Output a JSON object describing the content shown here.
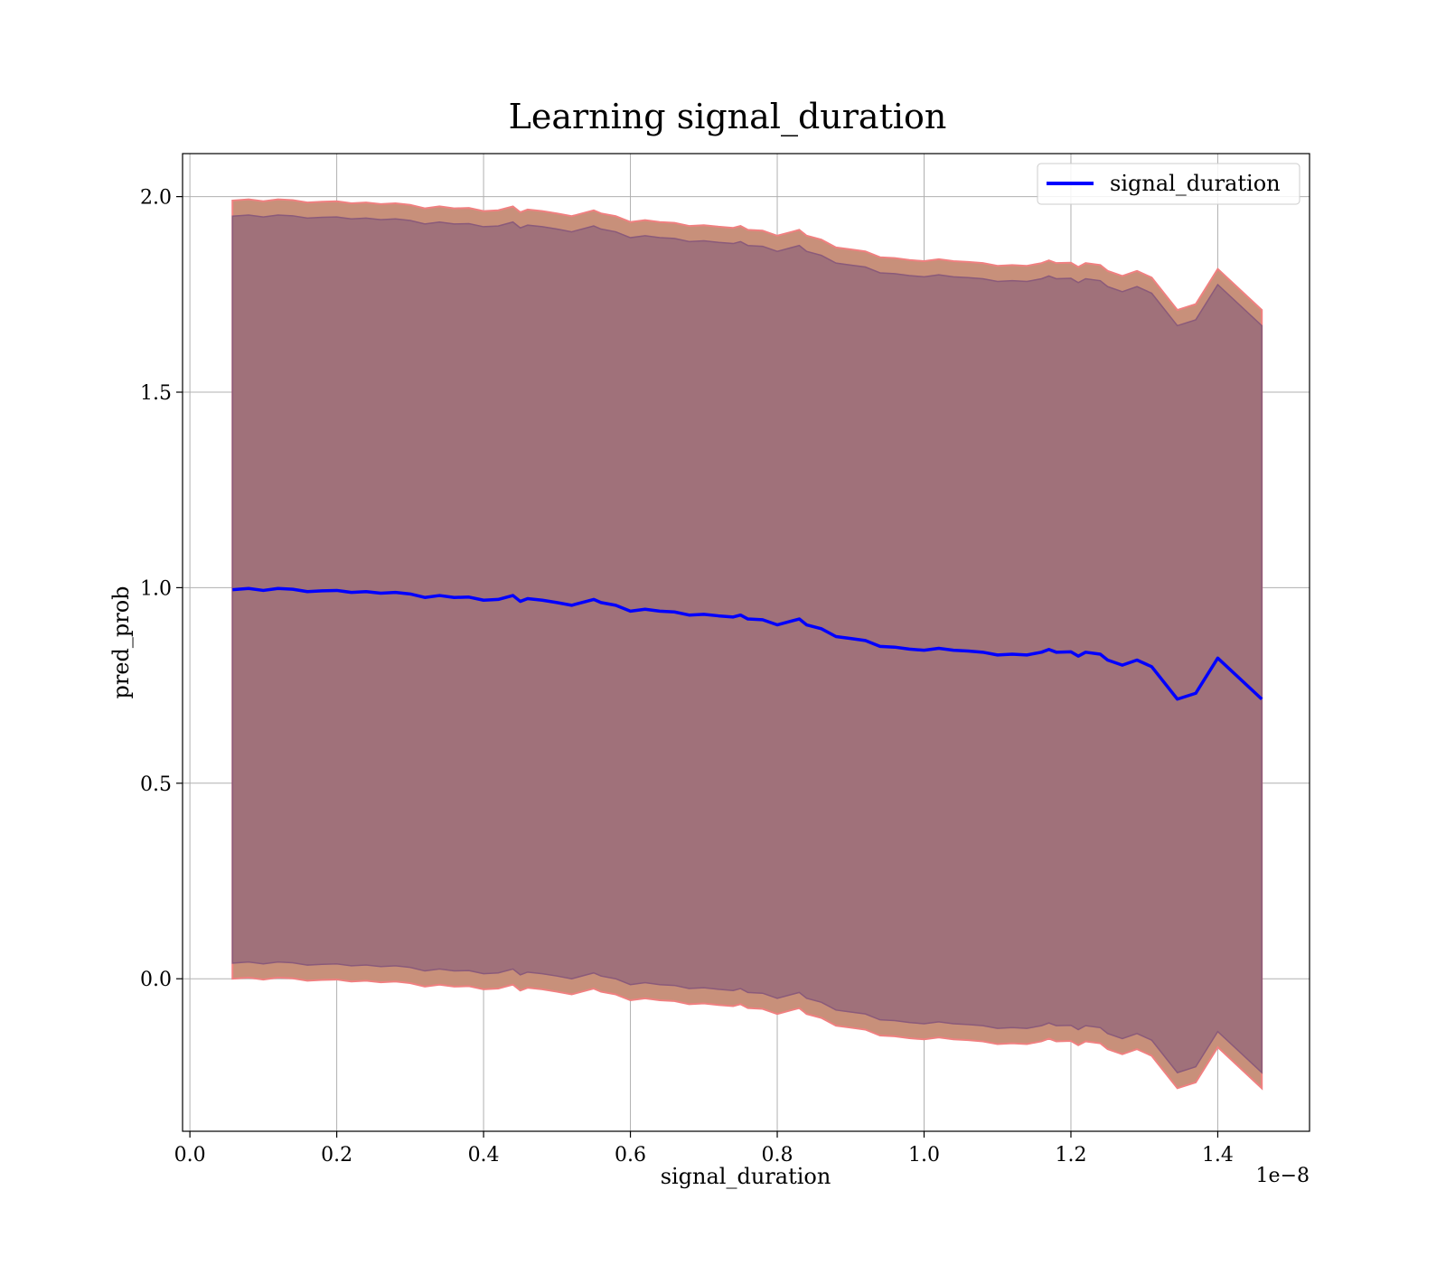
{
  "chart_data": {
    "type": "line",
    "title": "Learning signal_duration",
    "xlabel": "signal_duration",
    "ylabel": "pred_prob",
    "x_offset_label": "1e−8",
    "xlim": [
      -0.01,
      1.525
    ],
    "ylim": [
      -0.39,
      2.11
    ],
    "xticks": [
      0.0,
      0.2,
      0.4,
      0.6,
      0.8,
      1.0,
      1.2,
      1.4
    ],
    "xtick_labels": [
      "0.0",
      "0.2",
      "0.4",
      "0.6",
      "0.8",
      "1.0",
      "1.2",
      "1.4"
    ],
    "yticks": [
      0.0,
      0.5,
      1.0,
      1.5,
      2.0
    ],
    "ytick_labels": [
      "0.0",
      "0.5",
      "1.0",
      "1.5",
      "2.0"
    ],
    "grid": true,
    "legend_position": "top-right",
    "series": [
      {
        "name": "signal_duration",
        "color": "#0000ff",
        "x": [
          0.058,
          0.08,
          0.1,
          0.12,
          0.14,
          0.16,
          0.18,
          0.2,
          0.22,
          0.24,
          0.26,
          0.28,
          0.3,
          0.32,
          0.34,
          0.36,
          0.38,
          0.4,
          0.42,
          0.44,
          0.45,
          0.46,
          0.48,
          0.5,
          0.52,
          0.54,
          0.55,
          0.56,
          0.58,
          0.6,
          0.62,
          0.64,
          0.66,
          0.68,
          0.7,
          0.72,
          0.74,
          0.75,
          0.76,
          0.78,
          0.8,
          0.82,
          0.83,
          0.84,
          0.86,
          0.88,
          0.9,
          0.92,
          0.94,
          0.96,
          0.98,
          1.0,
          1.02,
          1.04,
          1.06,
          1.08,
          1.1,
          1.12,
          1.14,
          1.16,
          1.17,
          1.18,
          1.2,
          1.21,
          1.22,
          1.24,
          1.25,
          1.27,
          1.29,
          1.31,
          1.345,
          1.37,
          1.4,
          1.46
        ],
        "y": [
          0.995,
          0.998,
          0.993,
          0.998,
          0.996,
          0.99,
          0.992,
          0.993,
          0.988,
          0.99,
          0.986,
          0.988,
          0.984,
          0.975,
          0.98,
          0.975,
          0.976,
          0.968,
          0.97,
          0.98,
          0.965,
          0.972,
          0.968,
          0.962,
          0.955,
          0.965,
          0.97,
          0.962,
          0.955,
          0.94,
          0.945,
          0.94,
          0.938,
          0.93,
          0.932,
          0.928,
          0.925,
          0.93,
          0.92,
          0.918,
          0.905,
          0.915,
          0.92,
          0.905,
          0.895,
          0.875,
          0.87,
          0.865,
          0.85,
          0.848,
          0.843,
          0.84,
          0.845,
          0.84,
          0.838,
          0.835,
          0.828,
          0.83,
          0.828,
          0.835,
          0.842,
          0.835,
          0.836,
          0.825,
          0.835,
          0.83,
          0.815,
          0.802,
          0.815,
          0.798,
          0.715,
          0.73,
          0.82,
          0.715
        ],
        "outer_band_lower": [
          0.0,
          0.003,
          -0.002,
          0.003,
          0.001,
          -0.005,
          -0.003,
          -0.002,
          -0.007,
          -0.005,
          -0.009,
          -0.007,
          -0.011,
          -0.02,
          -0.015,
          -0.02,
          -0.019,
          -0.027,
          -0.025,
          -0.015,
          -0.03,
          -0.023,
          -0.027,
          -0.033,
          -0.04,
          -0.03,
          -0.025,
          -0.033,
          -0.04,
          -0.055,
          -0.05,
          -0.055,
          -0.057,
          -0.065,
          -0.063,
          -0.067,
          -0.07,
          -0.065,
          -0.075,
          -0.077,
          -0.09,
          -0.08,
          -0.075,
          -0.09,
          -0.1,
          -0.12,
          -0.125,
          -0.13,
          -0.145,
          -0.147,
          -0.152,
          -0.155,
          -0.15,
          -0.155,
          -0.157,
          -0.16,
          -0.167,
          -0.165,
          -0.167,
          -0.16,
          -0.153,
          -0.16,
          -0.159,
          -0.17,
          -0.16,
          -0.165,
          -0.18,
          -0.193,
          -0.18,
          -0.197,
          -0.28,
          -0.265,
          -0.175,
          -0.28
        ],
        "outer_band_upper": [
          1.99,
          1.993,
          1.988,
          1.993,
          1.991,
          1.985,
          1.987,
          1.988,
          1.983,
          1.985,
          1.981,
          1.983,
          1.979,
          1.97,
          1.975,
          1.97,
          1.971,
          1.963,
          1.965,
          1.975,
          1.96,
          1.967,
          1.963,
          1.957,
          1.95,
          1.96,
          1.965,
          1.957,
          1.95,
          1.935,
          1.94,
          1.935,
          1.933,
          1.925,
          1.927,
          1.923,
          1.92,
          1.925,
          1.915,
          1.913,
          1.9,
          1.91,
          1.915,
          1.9,
          1.89,
          1.87,
          1.865,
          1.86,
          1.845,
          1.843,
          1.838,
          1.835,
          1.84,
          1.835,
          1.833,
          1.83,
          1.823,
          1.825,
          1.823,
          1.83,
          1.837,
          1.83,
          1.831,
          1.82,
          1.83,
          1.825,
          1.81,
          1.797,
          1.81,
          1.793,
          1.71,
          1.725,
          1.815,
          1.71
        ],
        "inner_band_lower": [
          0.04,
          0.043,
          0.038,
          0.043,
          0.041,
          0.035,
          0.037,
          0.038,
          0.033,
          0.035,
          0.031,
          0.033,
          0.029,
          0.02,
          0.025,
          0.02,
          0.021,
          0.013,
          0.015,
          0.025,
          0.01,
          0.017,
          0.013,
          0.007,
          0.0,
          0.01,
          0.015,
          0.007,
          0.0,
          -0.015,
          -0.01,
          -0.015,
          -0.017,
          -0.025,
          -0.023,
          -0.027,
          -0.03,
          -0.025,
          -0.035,
          -0.037,
          -0.05,
          -0.04,
          -0.035,
          -0.05,
          -0.06,
          -0.08,
          -0.085,
          -0.09,
          -0.105,
          -0.107,
          -0.112,
          -0.115,
          -0.11,
          -0.115,
          -0.117,
          -0.12,
          -0.127,
          -0.125,
          -0.127,
          -0.12,
          -0.113,
          -0.12,
          -0.119,
          -0.13,
          -0.12,
          -0.125,
          -0.14,
          -0.153,
          -0.14,
          -0.157,
          -0.24,
          -0.225,
          -0.135,
          -0.24
        ],
        "inner_band_upper": [
          1.95,
          1.953,
          1.948,
          1.953,
          1.951,
          1.945,
          1.947,
          1.948,
          1.943,
          1.945,
          1.941,
          1.943,
          1.939,
          1.93,
          1.935,
          1.93,
          1.931,
          1.923,
          1.925,
          1.935,
          1.92,
          1.927,
          1.923,
          1.917,
          1.91,
          1.92,
          1.925,
          1.917,
          1.91,
          1.895,
          1.9,
          1.895,
          1.893,
          1.885,
          1.887,
          1.883,
          1.88,
          1.885,
          1.875,
          1.873,
          1.86,
          1.87,
          1.875,
          1.86,
          1.85,
          1.83,
          1.825,
          1.82,
          1.805,
          1.803,
          1.798,
          1.795,
          1.8,
          1.795,
          1.793,
          1.79,
          1.783,
          1.785,
          1.783,
          1.79,
          1.797,
          1.79,
          1.791,
          1.78,
          1.79,
          1.785,
          1.77,
          1.757,
          1.77,
          1.753,
          1.67,
          1.685,
          1.775,
          1.67
        ]
      }
    ],
    "colors": {
      "outer_band_fill": "#c8907a",
      "outer_band_edge": "#f08080",
      "inner_band_fill": "#a0717a",
      "inner_band_edge": "#8a5a7a",
      "line": "#0000ff"
    }
  }
}
